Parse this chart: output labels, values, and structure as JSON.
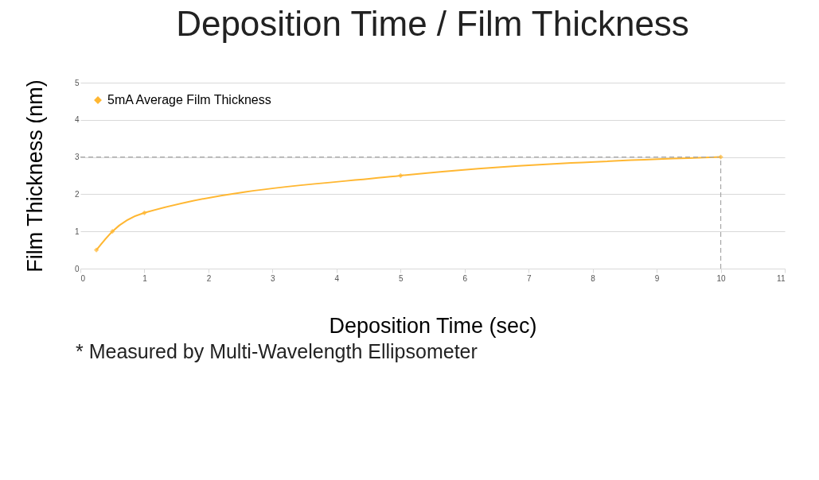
{
  "chart_data": {
    "type": "line",
    "title": "Deposition Time / Film Thickness",
    "xlabel": "Deposition Time (sec)",
    "ylabel": "Film Thickness (nm)",
    "x": [
      0.25,
      0.5,
      1,
      5,
      10
    ],
    "series": [
      {
        "name": "5mA Average Film Thickness",
        "color": "#ffb732",
        "values": [
          0.5,
          1,
          1.5,
          2.5,
          3
        ]
      }
    ],
    "xlim": [
      0,
      11
    ],
    "xticks": [
      0,
      1,
      2,
      3,
      4,
      5,
      6,
      7,
      8,
      9,
      10,
      11
    ],
    "ylim": [
      0,
      5
    ],
    "yticks": [
      0,
      1,
      2,
      3,
      4,
      5
    ],
    "grid": "y",
    "legend": "top left",
    "marker": "diamond",
    "line_style": "solid",
    "ref_lines": [
      {
        "axis": "y",
        "value": 3,
        "label": null,
        "color": "#a6a6a6",
        "line_style": "dashed"
      },
      {
        "axis": "x",
        "value": 10,
        "label": null,
        "color": "#a6a6a6",
        "line_style": "dashed"
      }
    ],
    "annotations": [
      "* Measured by Multi-Wavelength Ellipsometer"
    ]
  }
}
